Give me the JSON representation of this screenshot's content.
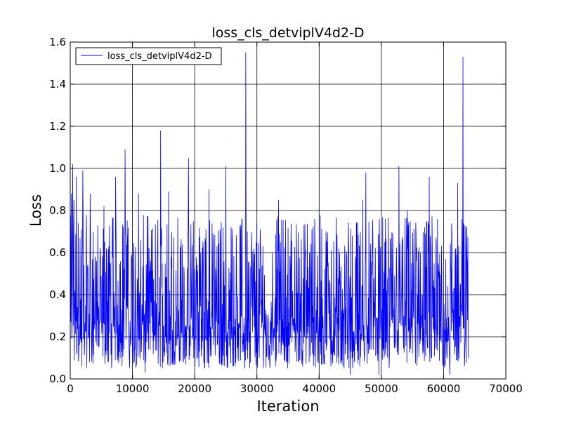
{
  "chart_data": {
    "type": "line",
    "title": "loss_cls_detviplV4d2-D",
    "xlabel": "Iteration",
    "ylabel": "Loss",
    "xlim": [
      0,
      70000
    ],
    "ylim": [
      0.0,
      1.6
    ],
    "x_ticks": [
      0,
      10000,
      20000,
      30000,
      40000,
      50000,
      60000,
      70000
    ],
    "x_tick_labels": [
      "0",
      "10000",
      "20000",
      "30000",
      "40000",
      "50000",
      "60000",
      "70000"
    ],
    "y_ticks": [
      0.0,
      0.2,
      0.4,
      0.6,
      0.8,
      1.0,
      1.2,
      1.4,
      1.6
    ],
    "y_tick_labels": [
      "0.0",
      "0.2",
      "0.4",
      "0.6",
      "0.8",
      "1.0",
      "1.2",
      "1.4",
      "1.6"
    ],
    "grid": true,
    "legend": {
      "position": "top-left",
      "entries": [
        "loss_cls_detviplV4d2-D"
      ]
    },
    "colors": {
      "series": "#0000ff",
      "grid": "#000000",
      "frame": "#000000"
    },
    "series": [
      {
        "name": "loss_cls_detviplV4d2-D",
        "x_range": [
          0,
          64000
        ],
        "band_min": 0.05,
        "band_max": 0.78,
        "peaks": [
          [
            0,
            0.72
          ],
          [
            200,
            0.88
          ],
          [
            400,
            1.02
          ],
          [
            600,
            0.85
          ],
          [
            1000,
            0.96
          ],
          [
            2000,
            0.99
          ],
          [
            3200,
            0.88
          ],
          [
            5400,
            0.82
          ],
          [
            7300,
            0.96
          ],
          [
            8800,
            1.09
          ],
          [
            11000,
            0.88
          ],
          [
            14500,
            1.18
          ],
          [
            15800,
            0.89
          ],
          [
            19000,
            1.05
          ],
          [
            22300,
            0.9
          ],
          [
            25000,
            1.01
          ],
          [
            28200,
            1.55
          ],
          [
            33500,
            0.85
          ],
          [
            47000,
            0.85
          ],
          [
            47500,
            0.98
          ],
          [
            52800,
            1.01
          ],
          [
            54200,
            0.8
          ],
          [
            57700,
            0.96
          ],
          [
            61000,
            0.95
          ],
          [
            62300,
            0.93
          ],
          [
            63100,
            1.53
          ],
          [
            63700,
            0.72
          ]
        ],
        "troughs": [
          [
            1500,
            0.16
          ],
          [
            12000,
            0.03
          ],
          [
            28000,
            0.05
          ],
          [
            45000,
            0.02
          ],
          [
            49600,
            0.02
          ],
          [
            61000,
            0.02
          ],
          [
            64000,
            0.1
          ]
        ]
      }
    ]
  }
}
